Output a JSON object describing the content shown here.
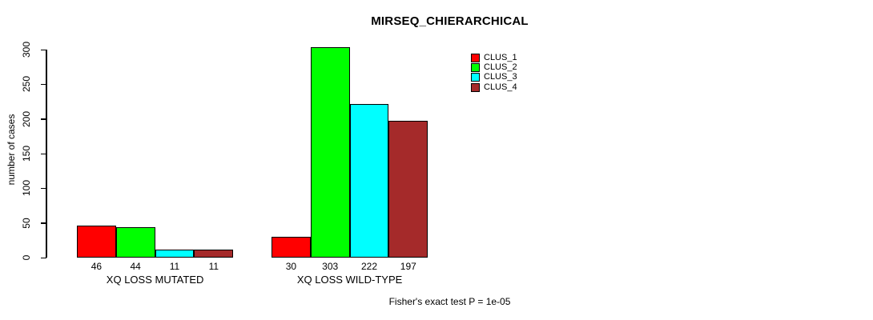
{
  "chart_data": {
    "type": "bar",
    "title": "MIRSEQ_CHIERARCHICAL",
    "xlabel": "",
    "ylabel": "number of cases",
    "categories": [
      "XQ LOSS MUTATED",
      "XQ LOSS WILD-TYPE"
    ],
    "series": [
      {
        "name": "CLUS_1",
        "color": "#ff0000",
        "values": [
          46,
          30
        ]
      },
      {
        "name": "CLUS_2",
        "color": "#00ff00",
        "values": [
          44,
          303
        ]
      },
      {
        "name": "CLUS_3",
        "color": "#00ffff",
        "values": [
          11,
          222
        ]
      },
      {
        "name": "CLUS_4",
        "color": "#a52a2a",
        "values": [
          11,
          197
        ]
      }
    ],
    "bar_value_labels": [
      [
        46,
        44,
        11,
        11
      ],
      [
        30,
        303,
        222,
        197
      ]
    ],
    "ylim": [
      0,
      300
    ],
    "yticks": [
      0,
      50,
      100,
      150,
      200,
      250,
      300
    ],
    "grid": false,
    "legend_position": "top-right",
    "annotation": "Fisher's exact test P = 1e-05",
    "axis_color": "#000000",
    "background_color": "#ffffff"
  }
}
